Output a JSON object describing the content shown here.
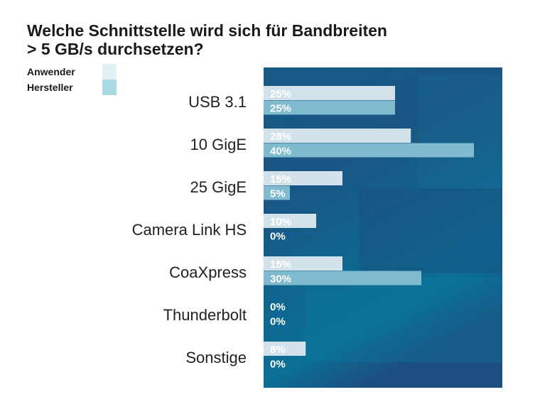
{
  "chart_data": {
    "type": "bar",
    "orientation": "horizontal",
    "title": "Welche Schnittstelle wird sich für Bandbreiten > 5 GB/s durchsetzen?",
    "title_lines": [
      "Welche Schnittstelle wird sich für Bandbreiten",
      "> 5 GB/s durchsetzen?"
    ],
    "categories": [
      "USB 3.1",
      "10 GigE",
      "25 GigE",
      "Camera Link HS",
      "CoaXpress",
      "Thunderbolt",
      "Sonstige"
    ],
    "series": [
      {
        "name": "Anwender",
        "values": [
          25,
          28,
          15,
          10,
          15,
          0,
          8
        ],
        "color": "#d3e2ea"
      },
      {
        "name": "Hersteller",
        "values": [
          25,
          40,
          5,
          0,
          30,
          0,
          0
        ],
        "color": "#7fbace"
      }
    ],
    "legend_colors": {
      "Anwender": "#e3f1f5",
      "Hersteller": "#a9d9e3"
    },
    "unit": "%",
    "xlim": [
      0,
      45
    ],
    "legend_position": "top-left",
    "grid": false,
    "background_color": "#14618a"
  }
}
